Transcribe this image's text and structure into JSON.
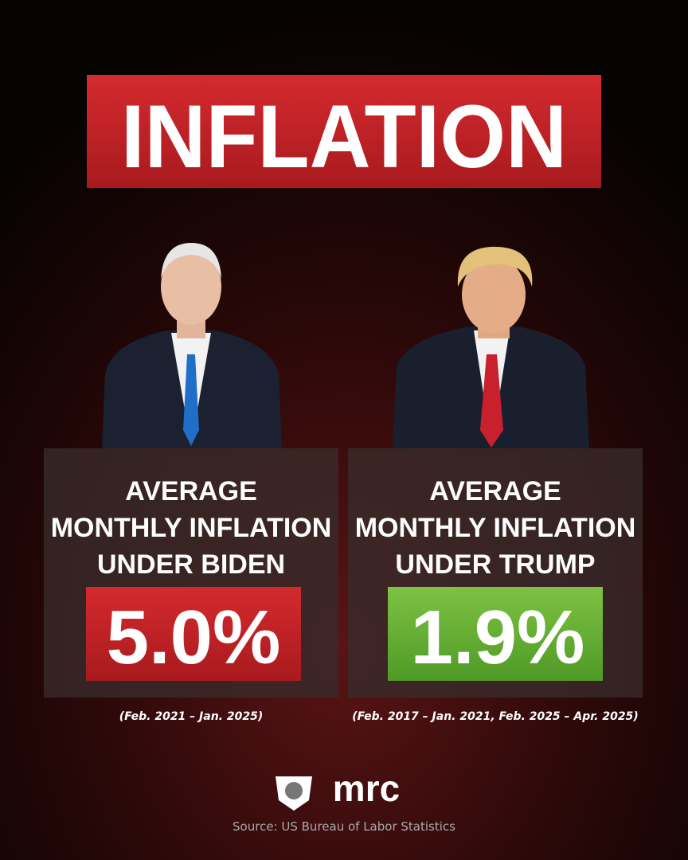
{
  "header": {
    "title": "INFLATION"
  },
  "panels": [
    {
      "heading": [
        "AVERAGE",
        "MONTHLY INFLATION",
        "UNDER BIDEN"
      ],
      "value": "5.0%",
      "period": "(Feb. 2021 – Jan. 2025)"
    },
    {
      "heading": [
        "AVERAGE",
        "MONTHLY INFLATION",
        "UNDER TRUMP"
      ],
      "value": "1.9%",
      "period": "(Feb. 2017 – Jan. 2021, Feb. 2025 – Apr. 2025)"
    }
  ],
  "footer": {
    "logo": "mrc",
    "source": "Source: US Bureau of Labor Statistics"
  }
}
